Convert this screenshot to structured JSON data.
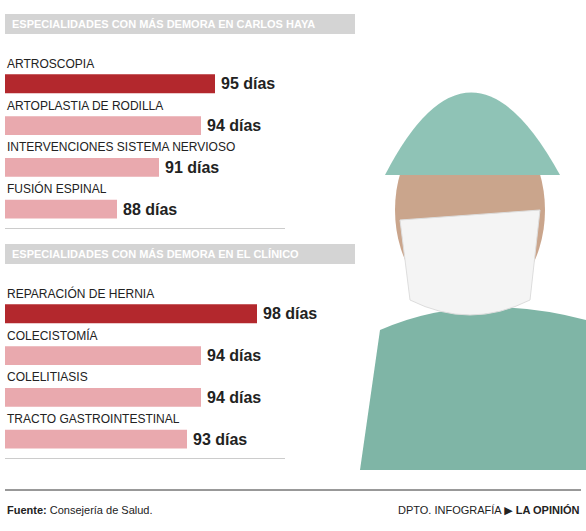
{
  "chart_data": [
    {
      "type": "bar",
      "orientation": "horizontal",
      "title": "ESPECIALIDADES CON MÁS DEMORA EN CARLOS HAYA",
      "categories": [
        "ARTROSCOPIA",
        "ARTOPLASTIA DE RODILLA",
        "INTERVENCIONES SISTEMA NERVIOSO",
        "FUSIÓN ESPINAL"
      ],
      "values": [
        95,
        94,
        91,
        88
      ],
      "value_labels": [
        "95 días",
        "94 días",
        "91 días",
        "88 días"
      ],
      "colors": [
        "#b3282d",
        "#e9a9ae",
        "#e9a9ae",
        "#e9a9ae"
      ],
      "xlim": [
        80,
        100
      ],
      "data_labels": true,
      "tick_labels": false,
      "grid": false
    },
    {
      "type": "bar",
      "orientation": "horizontal",
      "title": "ESPECIALIDADES CON MÁS DEMORA EN EL CLÍNICO",
      "categories": [
        "REPARACIÓN DE HERNIA",
        "COLECISTOMÍA",
        "COLELITIASIS",
        "TRACTO GASTROINTESTINAL"
      ],
      "values": [
        98,
        94,
        94,
        93
      ],
      "value_labels": [
        "98 días",
        "94 días",
        "94 días",
        "93 días"
      ],
      "colors": [
        "#b3282d",
        "#e9a9ae",
        "#e9a9ae",
        "#e9a9ae"
      ],
      "xlim": [
        80,
        100
      ],
      "data_labels": true,
      "tick_labels": false,
      "grid": false
    }
  ],
  "footer": {
    "source_label": "Fuente:",
    "source": "Consejería de Salud.",
    "credit": "DPTO. INFOGRAFÍA ▶",
    "publisher": "LA OPINIÓN"
  }
}
